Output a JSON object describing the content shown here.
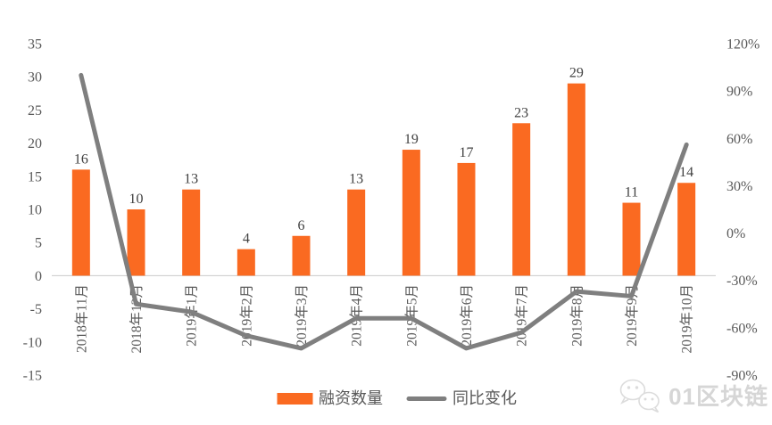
{
  "chart_data": {
    "type": "combo",
    "title": "",
    "categories": [
      "2018年11月",
      "2018年12月",
      "2019年1月",
      "2019年2月",
      "2019年3月",
      "2019年4月",
      "2019年5月",
      "2019年6月",
      "2019年7月",
      "2019年8月",
      "2019年9月",
      "2019年10月"
    ],
    "series": [
      {
        "name": "融资数量",
        "type": "bar",
        "axis": "left",
        "color": "#FA6A21",
        "values": [
          16,
          10,
          13,
          4,
          6,
          13,
          19,
          17,
          23,
          29,
          11,
          14
        ]
      },
      {
        "name": "同比变化",
        "type": "line",
        "axis": "right",
        "unit": "%",
        "color": "#7F7F7F",
        "values": [
          100,
          -45,
          -50,
          -65,
          -73,
          -54,
          -54,
          -73,
          -63,
          -37,
          -40,
          56
        ]
      }
    ],
    "left_axis": {
      "min": -15,
      "max": 35,
      "ticks": [
        35,
        30,
        25,
        20,
        15,
        10,
        5,
        0,
        -5,
        -10,
        -15
      ]
    },
    "right_axis": {
      "min": -90,
      "max": 120,
      "ticks": [
        120,
        90,
        60,
        30,
        0,
        -30,
        -60,
        -90
      ],
      "suffix": "%"
    },
    "grid": "zero-line-only",
    "legend_position": "bottom",
    "x_label_rotation": -90
  },
  "colors": {
    "bar": "#FA6A21",
    "line": "#7F7F7F",
    "tick_text": "#595959",
    "value_label": "#404040",
    "zero_line": "#C9C9C9",
    "watermark": "#D6D6D6"
  },
  "watermark": {
    "icon": "wechat-icon",
    "text": "01区块链"
  }
}
